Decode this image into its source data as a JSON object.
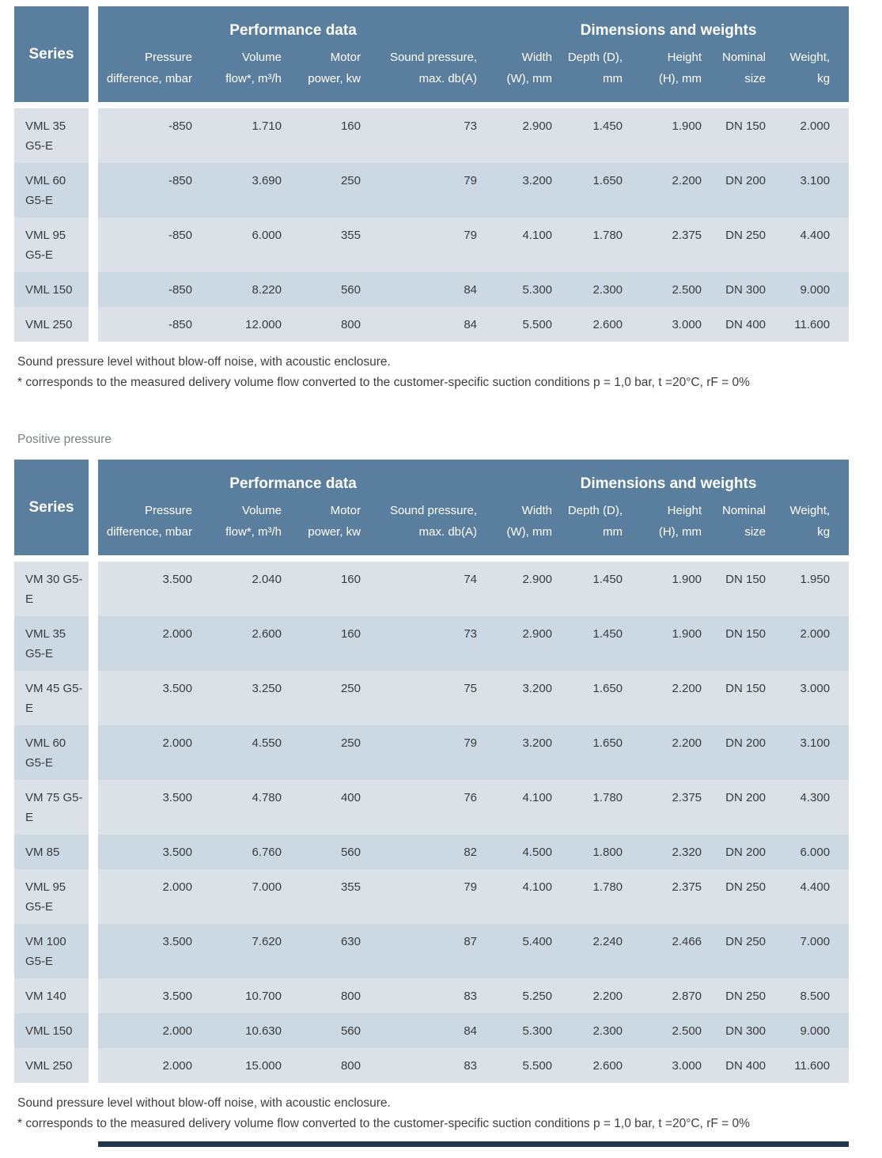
{
  "colors": {
    "header_bg": "#5a7e9d",
    "row_light": "#dce1e8",
    "row_alt": "#ccd8e2",
    "body_text": "#3a3b3d",
    "footnote_text": "#3e3f41",
    "section_label_text": "#7d8083",
    "bottom_bar": "#22374a"
  },
  "tables": [
    {
      "header": {
        "series_label": "Series",
        "groups": [
          {
            "label": "Performance data",
            "span": 4
          },
          {
            "label": "Dimensions and weights",
            "span": 5
          }
        ],
        "columns": [
          {
            "key": "pressure-difference",
            "line1": "Pressure",
            "line2": "difference, mbar"
          },
          {
            "key": "volume-flow",
            "line1": "Volume",
            "line2": "flow*, m³/h"
          },
          {
            "key": "motor-power",
            "line1": "Motor",
            "line2": "power, kw"
          },
          {
            "key": "sound-pressure",
            "line1": "Sound pressure,",
            "line2": "max. db(A)"
          },
          {
            "key": "width",
            "line1": "Width",
            "line2": "(W), mm"
          },
          {
            "key": "depth",
            "line1": "Depth (D),",
            "line2": "mm"
          },
          {
            "key": "height",
            "line1": "Height",
            "line2": "(H), mm"
          },
          {
            "key": "nominal-size",
            "line1": "Nominal",
            "line2": "size"
          },
          {
            "key": "weight",
            "line1": "Weight,",
            "line2": "kg"
          }
        ]
      },
      "rows": [
        [
          "VML 35 G5-E",
          "-850",
          "1.710",
          "160",
          "73",
          "2.900",
          "1.450",
          "1.900",
          "DN 150",
          "2.000"
        ],
        [
          "VML 60 G5-E",
          "-850",
          "3.690",
          "250",
          "79",
          "3.200",
          "1.650",
          "2.200",
          "DN 200",
          "3.100"
        ],
        [
          "VML 95 G5-E",
          "-850",
          "6.000",
          "355",
          "79",
          "4.100",
          "1.780",
          "2.375",
          "DN 250",
          "4.400"
        ],
        [
          "VML 150",
          "-850",
          "8.220",
          "560",
          "84",
          "5.300",
          "2.300",
          "2.500",
          "DN 300",
          "9.000"
        ],
        [
          "VML 250",
          "-850",
          "12.000",
          "800",
          "84",
          "5.500",
          "2.600",
          "3.000",
          "DN 400",
          "11.600"
        ]
      ],
      "footnotes": [
        "Sound pressure level without blow-off noise, with acoustic enclosure.",
        "* corresponds to the measured delivery volume flow converted to the customer-specific suction conditions p = 1,0 bar, t =20°C, rF = 0%"
      ]
    },
    {
      "section_label": "Positive pressure",
      "header": {
        "series_label": "Series",
        "groups": [
          {
            "label": "Performance data",
            "span": 4
          },
          {
            "label": "Dimensions and weights",
            "span": 5
          }
        ],
        "columns": [
          {
            "key": "pressure-difference",
            "line1": "Pressure",
            "line2": "difference, mbar"
          },
          {
            "key": "volume-flow",
            "line1": "Volume",
            "line2": "flow*, m³/h"
          },
          {
            "key": "motor-power",
            "line1": "Motor",
            "line2": "power, kw"
          },
          {
            "key": "sound-pressure",
            "line1": "Sound pressure,",
            "line2": "max. db(A)"
          },
          {
            "key": "width",
            "line1": "Width",
            "line2": "(W), mm"
          },
          {
            "key": "depth",
            "line1": "Depth (D),",
            "line2": "mm"
          },
          {
            "key": "height",
            "line1": "Height",
            "line2": "(H), mm"
          },
          {
            "key": "nominal-size",
            "line1": "Nominal",
            "line2": "size"
          },
          {
            "key": "weight",
            "line1": "Weight,",
            "line2": "kg"
          }
        ]
      },
      "rows": [
        [
          "VM 30 G5-E",
          "3.500",
          "2.040",
          "160",
          "74",
          "2.900",
          "1.450",
          "1.900",
          "DN 150",
          "1.950"
        ],
        [
          "VML 35 G5-E",
          "2.000",
          "2.600",
          "160",
          "73",
          "2.900",
          "1.450",
          "1.900",
          "DN 150",
          "2.000"
        ],
        [
          "VM 45 G5-E",
          "3.500",
          "3.250",
          "250",
          "75",
          "3.200",
          "1.650",
          "2.200",
          "DN 150",
          "3.000"
        ],
        [
          "VML 60 G5-E",
          "2.000",
          "4.550",
          "250",
          "79",
          "3.200",
          "1.650",
          "2.200",
          "DN 200",
          "3.100"
        ],
        [
          "VM 75 G5-E",
          "3.500",
          "4.780",
          "400",
          "76",
          "4.100",
          "1.780",
          "2.375",
          "DN 200",
          "4.300"
        ],
        [
          "VM 85",
          "3.500",
          "6.760",
          "560",
          "82",
          "4.500",
          "1.800",
          "2.320",
          "DN 200",
          "6.000"
        ],
        [
          "VML 95 G5-E",
          "2.000",
          "7.000",
          "355",
          "79",
          "4.100",
          "1.780",
          "2.375",
          "DN 250",
          "4.400"
        ],
        [
          "VM 100 G5-E",
          "3.500",
          "7.620",
          "630",
          "87",
          "5.400",
          "2.240",
          "2.466",
          "DN 250",
          "7.000"
        ],
        [
          "VM 140",
          "3.500",
          "10.700",
          "800",
          "83",
          "5.250",
          "2.200",
          "2.870",
          "DN 250",
          "8.500"
        ],
        [
          "VML 150",
          "2.000",
          "10.630",
          "560",
          "84",
          "5.300",
          "2.300",
          "2.500",
          "DN 300",
          "9.000"
        ],
        [
          "VML 250",
          "2.000",
          "15.000",
          "800",
          "83",
          "5.500",
          "2.600",
          "3.000",
          "DN 400",
          "11.600"
        ]
      ],
      "footnotes": [
        "Sound pressure level without blow-off noise, with acoustic enclosure.",
        "* corresponds to the measured delivery volume flow converted to the customer-specific suction conditions p = 1,0 bar, t =20°C, rF = 0%"
      ]
    }
  ]
}
